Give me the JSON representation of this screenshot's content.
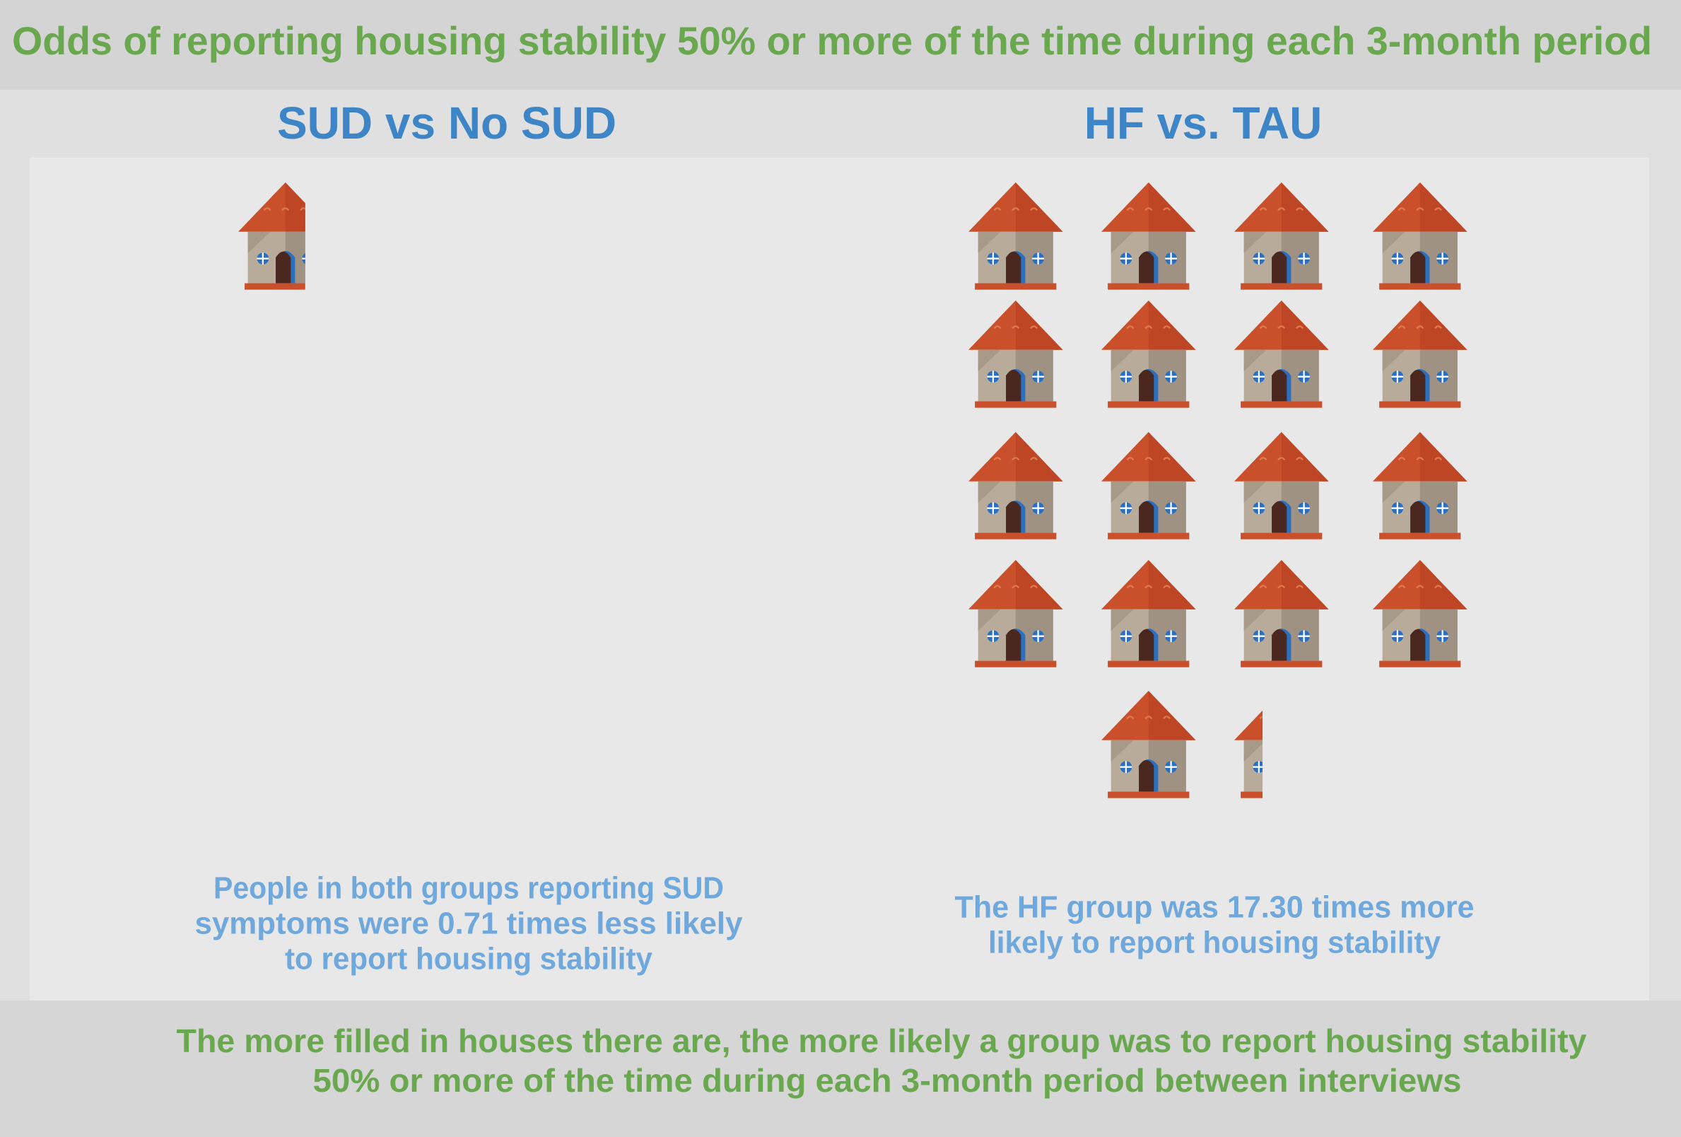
{
  "title": "Odds of reporting housing stability 50% or more of the time during each 3-month period",
  "chart_data": [
    {
      "type": "pictograph",
      "title": "SUD vs No SUD",
      "value": 0.71,
      "caption": [
        "People in both groups reporting SUD",
        "symptoms were 0.71 times less likely",
        "to report housing stability"
      ]
    },
    {
      "type": "pictograph",
      "title": "HF vs. TAU",
      "value": 17.3,
      "caption": [
        "The HF group was 17.30 times more",
        "likely to report housing stability"
      ]
    }
  ],
  "footnote": [
    "The more filled in houses there are, the more likely a group was to report housing stability",
    "50% or more of the time during each 3-month period between interviews"
  ]
}
